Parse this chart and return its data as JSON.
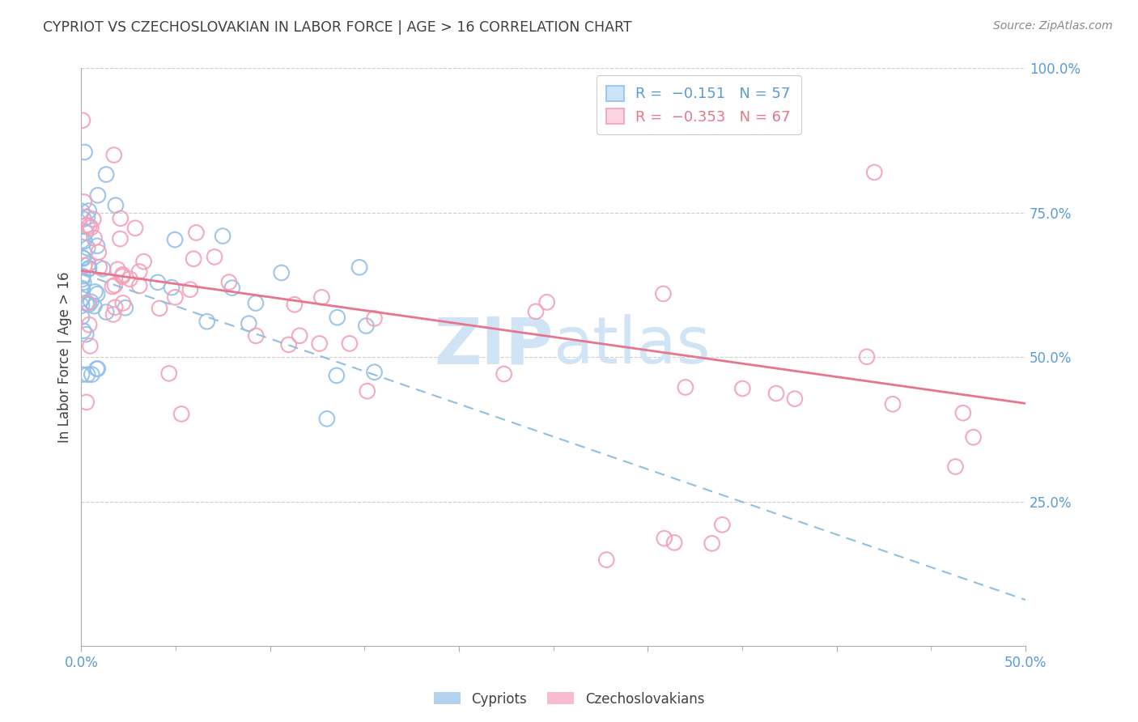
{
  "title": "CYPRIOT VS CZECHOSLOVAKIAN IN LABOR FORCE | AGE > 16 CORRELATION CHART",
  "source": "Source: ZipAtlas.com",
  "ylabel": "In Labor Force | Age > 16",
  "xmin": 0.0,
  "xmax": 0.5,
  "ymin": 0.0,
  "ymax": 1.0,
  "yticks": [
    0.25,
    0.5,
    0.75,
    1.0
  ],
  "ytick_labels": [
    "25.0%",
    "50.0%",
    "75.0%",
    "100.0%"
  ],
  "xtick_labels_ends": [
    "0.0%",
    "50.0%"
  ],
  "blue_color": "#92C0E8",
  "pink_color": "#F4A0BB",
  "blue_line_color": "#90C0E0",
  "pink_line_color": "#E8758E",
  "blue_R": -0.151,
  "blue_N": 57,
  "pink_R": -0.353,
  "pink_N": 67,
  "watermark_color": "#d0e4f5",
  "background_color": "#ffffff",
  "grid_color": "#cccccc",
  "tick_color": "#5b9bd5",
  "title_color": "#404040",
  "source_color": "#888888",
  "ylabel_color": "#404040",
  "legend_R_blue": "#5b9bd5",
  "legend_R_pink": "#E8758E",
  "legend_N_color": "#404040"
}
